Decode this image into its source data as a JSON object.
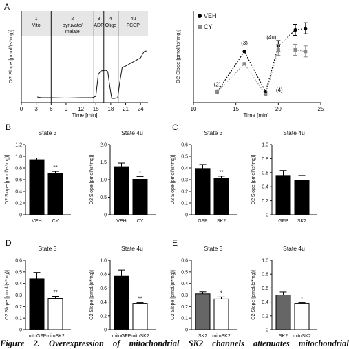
{
  "figure": {
    "panel_A": {
      "letter": "A",
      "trace": {
        "xlabel": "Time [min]",
        "ylabel": "O2 Slope [pmol/(s*mg)]",
        "xticks": [
          "0",
          "3",
          "6",
          "9",
          "12",
          "15",
          "18",
          "21",
          "24"
        ],
        "phases": [
          {
            "id": "1",
            "label": "Vito"
          },
          {
            "id": "2",
            "label": "pyruvate/ malate"
          },
          {
            "id": "3",
            "label": "ADP"
          },
          {
            "id": "4",
            "label": "Oligo"
          },
          {
            "id": "4u",
            "label": "FCCP"
          }
        ]
      },
      "states": {
        "xlabel": "Time [min]",
        "ylabel": "O2 Slope [pmol/(s*mg)]",
        "xticks": [
          "10",
          "15",
          "20",
          "25"
        ],
        "legend": [
          "VEH",
          "CY"
        ],
        "annotations": [
          "(2)",
          "(3)",
          "(4)",
          "(4u)"
        ]
      }
    },
    "panel_B": {
      "letter": "B"
    },
    "panel_C": {
      "letter": "C"
    },
    "panel_D": {
      "letter": "D"
    },
    "panel_E": {
      "letter": "E"
    },
    "caption": "Figure 2. Overexpression of mitochondrial SK2 channels attenuates mitochondrial"
  },
  "chart_data": [
    {
      "panel": "A-right",
      "type": "line",
      "xlabel": "Time [min]",
      "ylabel": "O2 Slope [pmol/(s*mg)]",
      "xlim": [
        10,
        25
      ],
      "legend": "top-left",
      "series": [
        {
          "name": "VEH",
          "x": [
            12.8,
            16,
            18.5,
            20,
            22,
            23.2
          ],
          "y": [
            0.2,
            0.95,
            0.2,
            1.05,
            1.35,
            1.38
          ]
        },
        {
          "name": "CY",
          "x": [
            12.8,
            16,
            18.5,
            20,
            22,
            23.2
          ],
          "y": [
            0.2,
            0.72,
            0.15,
            0.98,
            0.98,
            0.95
          ]
        }
      ]
    },
    {
      "panel": "B",
      "type": "bar",
      "title": "State 3",
      "ylabel": "O2 Slope [pmol/(s*mg)]",
      "categories": [
        "VEH",
        "CY"
      ],
      "values": [
        0.94,
        0.7
      ],
      "errors": [
        0.03,
        0.04
      ],
      "colors": [
        "#000000",
        "#000000"
      ],
      "significance": [
        "",
        "**"
      ],
      "ylim": [
        0,
        1.2
      ],
      "yticks": [
        "0",
        "0.2",
        "0.4",
        "0.6",
        "0.8",
        "1.0",
        "1.2"
      ]
    },
    {
      "panel": "B",
      "type": "bar",
      "title": "State 4u",
      "ylabel": "O2 Slope [pmol/(s*mg)]",
      "categories": [
        "VEH",
        "CY"
      ],
      "values": [
        1.37,
        1.01
      ],
      "errors": [
        0.1,
        0.08
      ],
      "colors": [
        "#000000",
        "#000000"
      ],
      "significance": [
        "",
        "*"
      ],
      "ylim": [
        0,
        2.0
      ],
      "yticks": [
        "0",
        "0.5",
        "1.0",
        "1.5",
        "2.0"
      ]
    },
    {
      "panel": "C",
      "type": "bar",
      "title": "State 3",
      "ylabel": "O2 Slope [pmol/(s*mg)]",
      "categories": [
        "GFP",
        "SK2"
      ],
      "values": [
        0.395,
        0.31
      ],
      "errors": [
        0.035,
        0.02
      ],
      "colors": [
        "#000000",
        "#000000"
      ],
      "significance": [
        "",
        "**"
      ],
      "ylim": [
        0,
        0.6
      ],
      "yticks": [
        "0",
        "0.1",
        "0.2",
        "0.3",
        "0.4",
        "0.5",
        "0.6"
      ]
    },
    {
      "panel": "C",
      "type": "bar",
      "title": "State 4u",
      "ylabel": "O2 Slope [pmol/(s*mg)]",
      "categories": [
        "GFP",
        "SK2"
      ],
      "values": [
        0.56,
        0.49
      ],
      "errors": [
        0.07,
        0.07
      ],
      "colors": [
        "#000000",
        "#000000"
      ],
      "significance": [
        "",
        ""
      ],
      "ylim": [
        0,
        1.0
      ],
      "yticks": [
        "0",
        "0.2",
        "0.4",
        "0.6",
        "0.8",
        "1.0"
      ]
    },
    {
      "panel": "D",
      "type": "bar",
      "title": "State 3",
      "ylabel": "O2 Slope [pmol/(s*mg)]",
      "categories": [
        "mitoGFP",
        "mitoSK2"
      ],
      "values": [
        0.44,
        0.27
      ],
      "errors": [
        0.055,
        0.018
      ],
      "colors": [
        "#000000",
        "#ffffff"
      ],
      "significance": [
        "",
        "**"
      ],
      "ylim": [
        0,
        0.6
      ],
      "yticks": [
        "0",
        "0.1",
        "0.2",
        "0.3",
        "0.4",
        "0.5",
        "0.6"
      ]
    },
    {
      "panel": "D",
      "type": "bar",
      "title": "State 4u",
      "ylabel": "O2 Slope [pmol/(s*mg)]",
      "categories": [
        "mitoGFP",
        "mitoSK2"
      ],
      "values": [
        0.77,
        0.38
      ],
      "errors": [
        0.09,
        0.01
      ],
      "colors": [
        "#000000",
        "#ffffff"
      ],
      "significance": [
        "",
        "**"
      ],
      "ylim": [
        0,
        1.0
      ],
      "yticks": [
        "0",
        "0.2",
        "0.4",
        "0.6",
        "0.8",
        "1.0"
      ]
    },
    {
      "panel": "E",
      "type": "bar",
      "title": "State 3",
      "ylabel": "O2 Slope [pmol/(s*mg)]",
      "categories": [
        "SK2",
        "mitoSK2"
      ],
      "values": [
        0.31,
        0.265
      ],
      "errors": [
        0.018,
        0.018
      ],
      "colors": [
        "#666666",
        "#ffffff"
      ],
      "significance": [
        "",
        "*"
      ],
      "ylim": [
        0,
        0.6
      ],
      "yticks": [
        "0",
        "0.1",
        "0.2",
        "0.3",
        "0.4",
        "0.5",
        "0.6"
      ]
    },
    {
      "panel": "E",
      "type": "bar",
      "title": "State 4u",
      "ylabel": "O2 Slope [pmol/(s*mg)]",
      "categories": [
        "SK2",
        "mitoSK2"
      ],
      "values": [
        0.5,
        0.38
      ],
      "errors": [
        0.045,
        0.01
      ],
      "colors": [
        "#666666",
        "#ffffff"
      ],
      "significance": [
        "",
        "*"
      ],
      "ylim": [
        0,
        1.0
      ],
      "yticks": [
        "0",
        "0.2",
        "0.4",
        "0.6",
        "0.8",
        "1.0"
      ]
    }
  ]
}
